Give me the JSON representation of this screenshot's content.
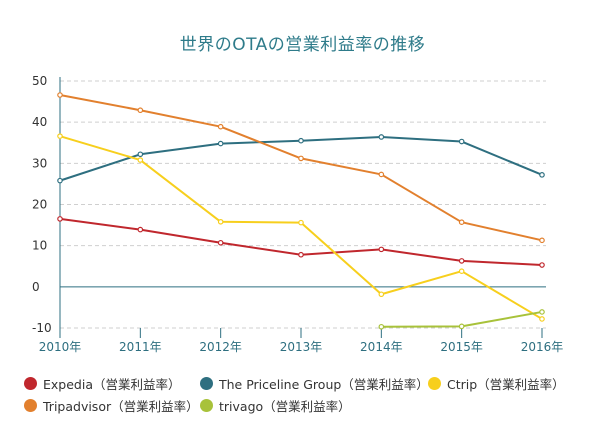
{
  "chart_data": {
    "type": "line",
    "title": "世界のOTAの営業利益率の推移",
    "categories": [
      "2010年",
      "2011年",
      "2012年",
      "2013年",
      "2014年",
      "2015年",
      "2016年"
    ],
    "ylim": [
      -10,
      50
    ],
    "yticks": [
      "50",
      "40",
      "30",
      "20",
      "10",
      "0",
      "-10"
    ],
    "grid": true,
    "legend_position": "bottom",
    "series": [
      {
        "name": "Expedia（営業利益率）",
        "color": "#c0272d",
        "values": [
          16.5,
          13.9,
          10.7,
          7.8,
          9.1,
          6.3,
          5.3
        ]
      },
      {
        "name": "The Priceline Group（営業利益率）",
        "color": "#2e6f80",
        "values": [
          25.8,
          32.2,
          34.8,
          35.5,
          36.4,
          35.3,
          27.2
        ]
      },
      {
        "name": "Ctrip（営業利益率）",
        "color": "#f7cf1d",
        "values": [
          36.6,
          30.8,
          15.8,
          15.6,
          -1.8,
          3.8,
          -7.8
        ]
      },
      {
        "name": "Tripadvisor（営業利益率）",
        "color": "#e2802e",
        "values": [
          46.6,
          42.9,
          38.9,
          31.2,
          27.3,
          15.7,
          11.3
        ]
      },
      {
        "name": "trivago（営業利益率）",
        "color": "#a8c23a",
        "values": [
          null,
          null,
          null,
          null,
          -9.7,
          -9.6,
          -6.1
        ]
      }
    ]
  }
}
